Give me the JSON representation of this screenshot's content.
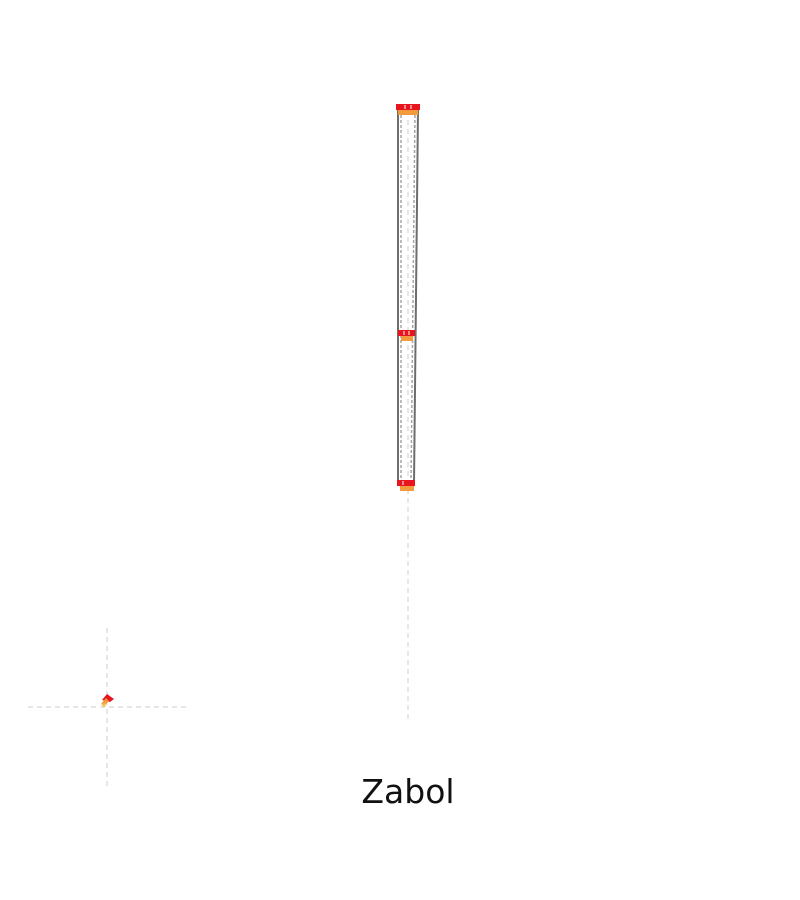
{
  "map": {
    "place_label": "Zabol",
    "colors": {
      "background": "#ffffff",
      "guide_line": "#cfcfcf",
      "track_outline": "#666666",
      "track_fill": "#9a9a9a",
      "marker_red": "#e8141e",
      "marker_orange": "#f39a3c"
    },
    "icons": [
      "crosshair-guide-icon",
      "location-marker-icon"
    ]
  }
}
